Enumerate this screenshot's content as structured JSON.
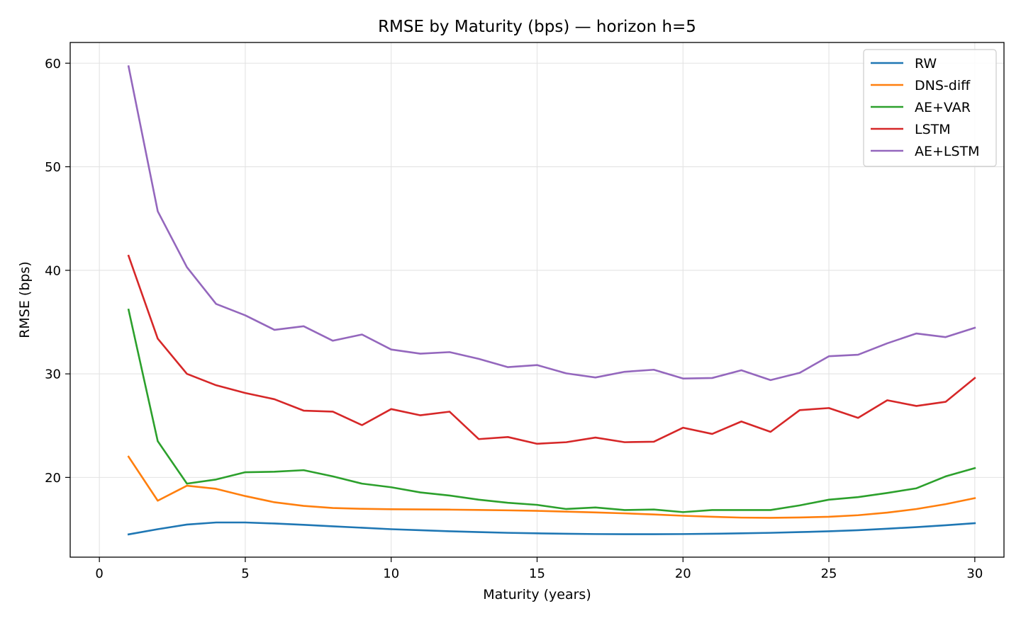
{
  "chart_data": {
    "type": "line",
    "title": "RMSE by Maturity (bps) — horizon h=5",
    "xlabel": "Maturity (years)",
    "ylabel": "RMSE (bps)",
    "xlim": [
      -1,
      31
    ],
    "ylim": [
      12.3,
      62.0
    ],
    "xticks": [
      0,
      5,
      10,
      15,
      20,
      25,
      30
    ],
    "yticks": [
      20,
      30,
      40,
      50,
      60
    ],
    "grid": true,
    "legend_position": "top-right",
    "x": [
      1,
      2,
      3,
      4,
      5,
      6,
      7,
      8,
      9,
      10,
      11,
      12,
      13,
      14,
      15,
      16,
      17,
      18,
      19,
      20,
      21,
      22,
      23,
      24,
      25,
      26,
      27,
      28,
      29,
      30
    ],
    "series": [
      {
        "name": "RW",
        "color": "#1f77b4",
        "values": [
          14.5,
          15.0,
          15.45,
          15.65,
          15.65,
          15.55,
          15.42,
          15.28,
          15.14,
          15.0,
          14.9,
          14.8,
          14.72,
          14.65,
          14.6,
          14.56,
          14.53,
          14.52,
          14.52,
          14.53,
          14.56,
          14.6,
          14.65,
          14.72,
          14.8,
          14.9,
          15.05,
          15.2,
          15.38,
          15.58
        ]
      },
      {
        "name": "DNS-diff",
        "color": "#ff7f0e",
        "values": [
          22.0,
          17.75,
          19.2,
          18.9,
          18.2,
          17.6,
          17.25,
          17.05,
          16.97,
          16.93,
          16.91,
          16.89,
          16.86,
          16.82,
          16.77,
          16.7,
          16.62,
          16.53,
          16.42,
          16.3,
          16.2,
          16.12,
          16.1,
          16.13,
          16.2,
          16.35,
          16.6,
          16.95,
          17.42,
          18.0
        ]
      },
      {
        "name": "AE+VAR",
        "color": "#2ca02c",
        "values": [
          36.2,
          23.5,
          19.4,
          19.8,
          20.5,
          20.55,
          20.7,
          20.1,
          19.4,
          19.05,
          18.55,
          18.25,
          17.85,
          17.55,
          17.35,
          16.95,
          17.1,
          16.85,
          16.9,
          16.65,
          16.85,
          16.85,
          16.85,
          17.3,
          17.85,
          18.1,
          18.5,
          18.95,
          20.1,
          20.9
        ]
      },
      {
        "name": "LSTM",
        "color": "#d62728",
        "values": [
          41.4,
          33.4,
          30.0,
          28.9,
          28.15,
          27.55,
          26.45,
          26.35,
          25.05,
          26.6,
          26.0,
          26.35,
          23.7,
          23.9,
          23.25,
          23.4,
          23.85,
          23.4,
          23.45,
          24.8,
          24.2,
          25.4,
          24.4,
          26.5,
          26.7,
          25.75,
          27.45,
          26.9,
          27.3,
          29.6
        ]
      },
      {
        "name": "AE+LSTM",
        "color": "#9467bd",
        "values": [
          59.7,
          45.7,
          40.3,
          36.75,
          35.65,
          34.25,
          34.6,
          33.2,
          33.8,
          32.35,
          31.95,
          32.1,
          31.45,
          30.65,
          30.85,
          30.05,
          29.65,
          30.2,
          30.4,
          29.55,
          29.6,
          30.35,
          29.4,
          30.1,
          31.7,
          31.85,
          32.95,
          33.9,
          33.55,
          34.45
        ]
      }
    ]
  }
}
